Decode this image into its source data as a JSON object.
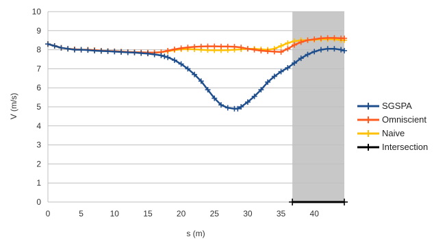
{
  "chart_data": {
    "type": "line",
    "xlabel": "s (m)",
    "ylabel": "V (m/s)",
    "xlim": [
      0,
      44.5
    ],
    "ylim": [
      0,
      10
    ],
    "x_ticks": [
      0,
      5,
      10,
      15,
      20,
      25,
      30,
      35,
      40
    ],
    "y_ticks": [
      0,
      1,
      2,
      3,
      4,
      5,
      6,
      7,
      8,
      9,
      10
    ],
    "grid": "horizontal",
    "legend_position": "right",
    "shaded_region": {
      "x_start": 36.7,
      "x_end": 44.5,
      "color": "#c8c8c8"
    },
    "series": [
      {
        "name": "SGSPA",
        "color": "#1f4e8c",
        "x": [
          0,
          1,
          2,
          3,
          4,
          5,
          6,
          7,
          8,
          9,
          10,
          11,
          12,
          13,
          14,
          15,
          16,
          17,
          17.5,
          18,
          19,
          20,
          21,
          22,
          23,
          24,
          25,
          26,
          27,
          28,
          28.5,
          29,
          30,
          31,
          32,
          33,
          34,
          35,
          36,
          37,
          38,
          39,
          40,
          41,
          42,
          43,
          44,
          44.5
        ],
        "y": [
          8.3,
          8.2,
          8.1,
          8.05,
          8.0,
          8.0,
          7.98,
          7.95,
          7.93,
          7.92,
          7.9,
          7.88,
          7.86,
          7.85,
          7.82,
          7.8,
          7.75,
          7.7,
          7.65,
          7.6,
          7.45,
          7.25,
          7.0,
          6.7,
          6.35,
          5.9,
          5.45,
          5.1,
          4.95,
          4.9,
          4.9,
          5.0,
          5.25,
          5.55,
          5.9,
          6.3,
          6.6,
          6.85,
          7.05,
          7.3,
          7.55,
          7.75,
          7.9,
          8.0,
          8.05,
          8.05,
          8.0,
          7.95
        ]
      },
      {
        "name": "Omniscient",
        "color": "#ff5a1f",
        "x": [
          0,
          1,
          2,
          3,
          4,
          5,
          6,
          7,
          8,
          9,
          10,
          11,
          12,
          13,
          14,
          15,
          16,
          17,
          18,
          19,
          20,
          21,
          22,
          23,
          24,
          25,
          26,
          27,
          28,
          29,
          30,
          31,
          32,
          33,
          34,
          35,
          36,
          37,
          38,
          39,
          40,
          41,
          42,
          43,
          44,
          44.5
        ],
        "y": [
          8.3,
          8.2,
          8.1,
          8.05,
          8.02,
          8.0,
          8.0,
          7.98,
          7.95,
          7.93,
          7.92,
          7.9,
          7.88,
          7.87,
          7.86,
          7.85,
          7.85,
          7.87,
          7.95,
          8.02,
          8.08,
          8.12,
          8.15,
          8.17,
          8.18,
          8.18,
          8.17,
          8.17,
          8.16,
          8.12,
          8.05,
          8.0,
          7.95,
          7.92,
          7.9,
          7.88,
          8.05,
          8.25,
          8.4,
          8.5,
          8.55,
          8.6,
          8.62,
          8.62,
          8.6,
          8.6
        ]
      },
      {
        "name": "Naive",
        "color": "#ffc000",
        "x": [
          0,
          1,
          2,
          3,
          4,
          5,
          6,
          7,
          8,
          9,
          10,
          11,
          12,
          13,
          14,
          15,
          16,
          17,
          18,
          19,
          20,
          21,
          22,
          23,
          24,
          25,
          26,
          27,
          28,
          29,
          30,
          31,
          32,
          33,
          34,
          35,
          36,
          37,
          38,
          39,
          40,
          41,
          42,
          43,
          44,
          44.5
        ],
        "y": [
          8.3,
          8.2,
          8.1,
          8.05,
          8.02,
          8.0,
          8.0,
          7.98,
          7.95,
          7.93,
          7.92,
          7.9,
          7.88,
          7.87,
          7.86,
          7.85,
          7.85,
          7.87,
          7.92,
          7.98,
          8.02,
          8.03,
          8.02,
          8.0,
          7.98,
          7.97,
          7.97,
          7.98,
          8.0,
          8.02,
          8.05,
          8.05,
          8.02,
          8.0,
          8.05,
          8.2,
          8.35,
          8.45,
          8.5,
          8.5,
          8.52,
          8.55,
          8.55,
          8.55,
          8.5,
          8.5
        ]
      },
      {
        "name": "Intersection",
        "color": "#000000",
        "x": [
          36.7,
          44.5
        ],
        "y": [
          0,
          0
        ]
      }
    ]
  }
}
